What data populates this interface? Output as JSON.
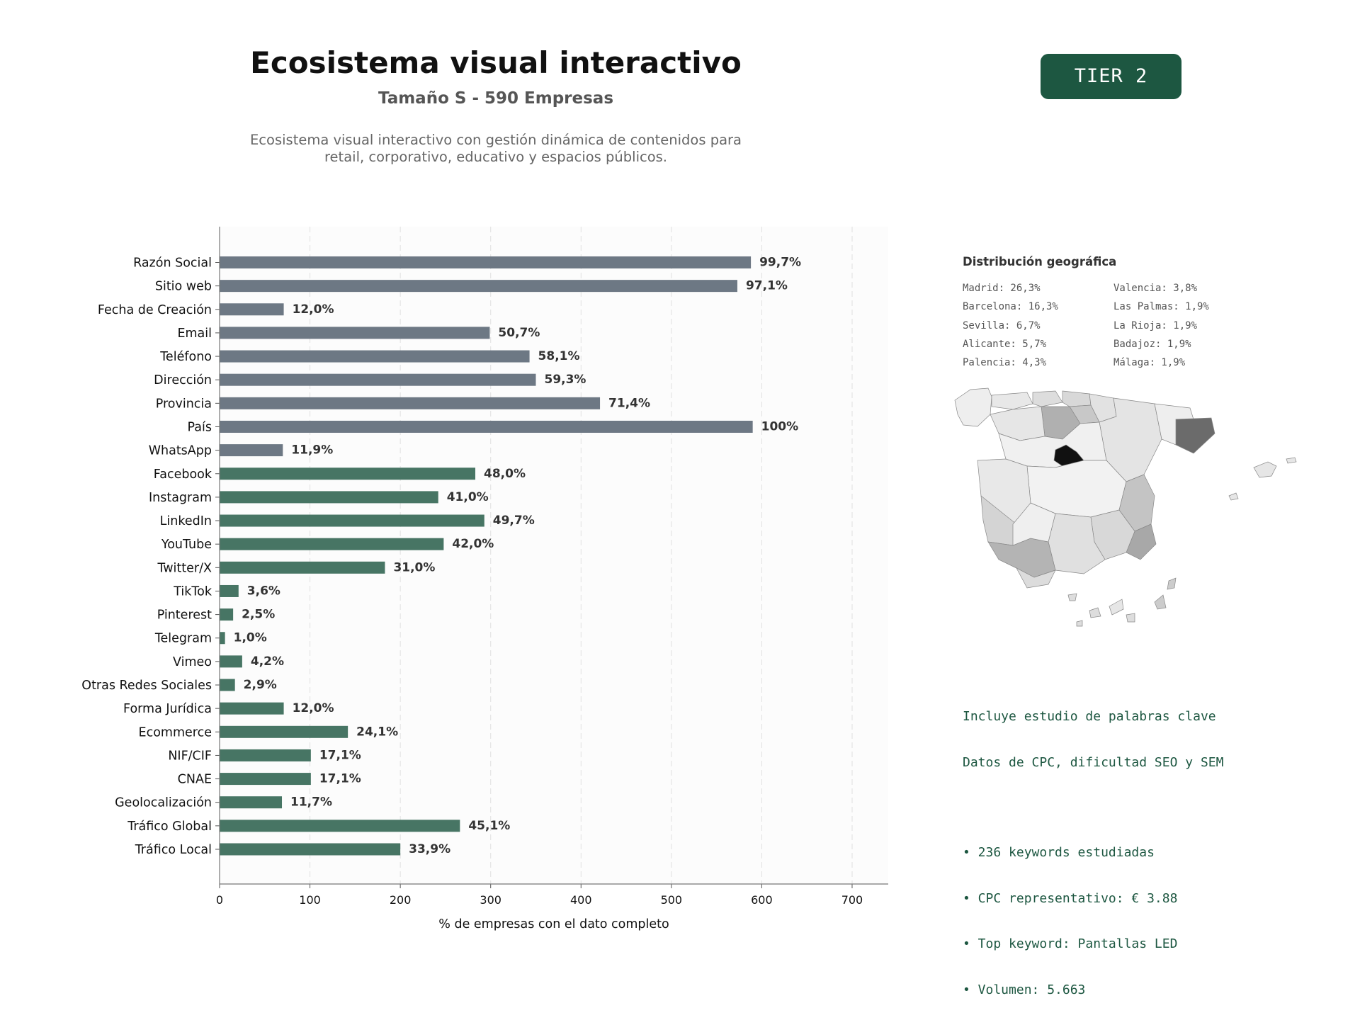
{
  "header": {
    "title": "Ecosistema visual interactivo",
    "subtitle": "Tamaño S - 590 Empresas",
    "description_line1": "Ecosistema visual interactivo con gestión dinámica de contenidos para",
    "description_line2": "retail, corporativo, educativo y espacios públicos.",
    "tier_badge": "TIER 2"
  },
  "colors": {
    "accent": "#1d5741",
    "bar_gray": "#6d7884",
    "bar_green": "#477564"
  },
  "chart_data": {
    "type": "bar",
    "orientation": "horizontal",
    "xlabel": "% de empresas con el dato completo",
    "xlim": [
      0,
      740
    ],
    "xticks": [
      0,
      100,
      200,
      300,
      400,
      500,
      600,
      700
    ],
    "grid": "vertical dashed",
    "categories": [
      "Razón Social",
      "Sitio web",
      "Fecha de Creación",
      "Email",
      "Teléfono",
      "Dirección",
      "Provincia",
      "País",
      "WhatsApp",
      "Facebook",
      "Instagram",
      "LinkedIn",
      "YouTube",
      "Twitter/X",
      "TikTok",
      "Pinterest",
      "Telegram",
      "Vimeo",
      "Otras Redes Sociales",
      "Forma Jurídica",
      "Ecommerce",
      "NIF/CIF",
      "CNAE",
      "Geolocalización",
      "Tráfico Global",
      "Tráfico Local"
    ],
    "values": [
      588,
      573,
      71,
      299,
      343,
      350,
      421,
      590,
      70,
      283,
      242,
      293,
      248,
      183,
      21,
      15,
      6,
      25,
      17,
      71,
      142,
      101,
      101,
      69,
      266,
      200
    ],
    "labels": [
      "99,7%",
      "97,1%",
      "12,0%",
      "50,7%",
      "58,1%",
      "59,3%",
      "71,4%",
      "100%",
      "11,9%",
      "48,0%",
      "41,0%",
      "49,7%",
      "42,0%",
      "31,0%",
      "3,6%",
      "2,5%",
      "1,0%",
      "4,2%",
      "2,9%",
      "12,0%",
      "24,1%",
      "17,1%",
      "17,1%",
      "11,7%",
      "45,1%",
      "33,9%"
    ],
    "bar_color_group": [
      "gray",
      "gray",
      "gray",
      "gray",
      "gray",
      "gray",
      "gray",
      "gray",
      "gray",
      "green",
      "green",
      "green",
      "green",
      "green",
      "green",
      "green",
      "green",
      "green",
      "green",
      "green",
      "green",
      "green",
      "green",
      "green",
      "green",
      "green"
    ]
  },
  "geo": {
    "title": "Distribución geográfica",
    "left_column": [
      "Madrid: 26,3%",
      "Barcelona: 16,3%",
      "Sevilla: 6,7%",
      "Alicante: 5,7%",
      "Palencia: 4,3%"
    ],
    "right_column": [
      "Valencia: 3,8%",
      "Las Palmas: 1,9%",
      "La Rioja: 1,9%",
      "Badajoz: 1,9%",
      "Málaga: 1,9%"
    ]
  },
  "keywords": {
    "line1": "Incluye estudio de palabras clave",
    "line2": "Datos de CPC, dificultad SEO y SEM",
    "bullets": [
      "• 236 keywords estudiadas",
      "• CPC representativo: € 3.88",
      "• Top keyword: Pantallas LED",
      "• Volumen: 5.663"
    ]
  }
}
